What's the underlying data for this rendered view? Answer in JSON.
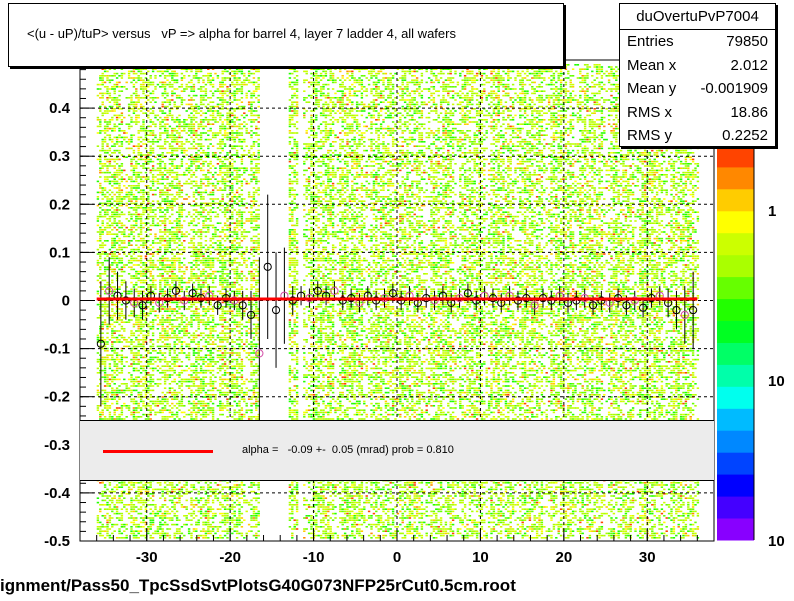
{
  "chart_data": {
    "type": "scatter",
    "title": "<(u - uP)/tuP> versus   vP => alpha for barrel 4, layer 7 ladder 4, all wafers",
    "xlim": [
      -38,
      38
    ],
    "ylim": [
      -0.5,
      0.5
    ],
    "x_ticks": [
      "-30",
      "-20",
      "-10",
      "0",
      "10",
      "20",
      "30"
    ],
    "y_ticks": [
      "-0.5",
      "-0.4",
      "-0.3",
      "-0.2",
      "-0.1",
      "0",
      "0.1",
      "0.2",
      "0.3",
      "0.4"
    ],
    "grid": true,
    "palette_labels": [
      "1",
      "10",
      "10"
    ],
    "fit": {
      "x_range": [
        -36,
        36
      ],
      "y": 0.003,
      "color": "#ff0000",
      "legend_text": "alpha =   -0.09 +-  0.05 (mrad) prob = 0.810"
    },
    "profile_points": [
      {
        "x": -35.5,
        "y": -0.09,
        "err": 0.13
      },
      {
        "x": -34.5,
        "y": 0.02,
        "err": 0.07
      },
      {
        "x": -33.5,
        "y": 0.01,
        "err": 0.05
      },
      {
        "x": -32.5,
        "y": 0.0,
        "err": 0.04
      },
      {
        "x": -31.5,
        "y": -0.005,
        "err": 0.03
      },
      {
        "x": -30.5,
        "y": -0.01,
        "err": 0.03
      },
      {
        "x": -29.5,
        "y": 0.01,
        "err": 0.02
      },
      {
        "x": -28.5,
        "y": -0.005,
        "err": 0.02
      },
      {
        "x": -27.5,
        "y": 0.005,
        "err": 0.02
      },
      {
        "x": -26.5,
        "y": 0.02,
        "err": 0.02
      },
      {
        "x": -25.5,
        "y": 0.0,
        "err": 0.02
      },
      {
        "x": -24.5,
        "y": 0.015,
        "err": 0.02
      },
      {
        "x": -23.5,
        "y": 0.005,
        "err": 0.02
      },
      {
        "x": -22.5,
        "y": 0.01,
        "err": 0.02
      },
      {
        "x": -21.5,
        "y": -0.01,
        "err": 0.02
      },
      {
        "x": -20.5,
        "y": 0.005,
        "err": 0.02
      },
      {
        "x": -19.5,
        "y": 0.0,
        "err": 0.02
      },
      {
        "x": -18.5,
        "y": -0.01,
        "err": 0.03
      },
      {
        "x": -17.5,
        "y": -0.03,
        "err": 0.05
      },
      {
        "x": -16.5,
        "y": -0.11,
        "err": 0.2
      },
      {
        "x": -15.5,
        "y": 0.07,
        "err": 0.15
      },
      {
        "x": -14.5,
        "y": -0.02,
        "err": 0.12
      },
      {
        "x": -13.5,
        "y": 0.01,
        "err": 0.1
      },
      {
        "x": -12.5,
        "y": 0.0,
        "err": 0.03
      },
      {
        "x": -11.5,
        "y": 0.01,
        "err": 0.02
      },
      {
        "x": -10.5,
        "y": 0.005,
        "err": 0.02
      },
      {
        "x": -9.5,
        "y": 0.02,
        "err": 0.02
      },
      {
        "x": -8.5,
        "y": 0.01,
        "err": 0.02
      },
      {
        "x": -7.5,
        "y": 0.02,
        "err": 0.02
      },
      {
        "x": -6.5,
        "y": 0.0,
        "err": 0.02
      },
      {
        "x": -5.5,
        "y": 0.005,
        "err": 0.02
      },
      {
        "x": -4.5,
        "y": -0.005,
        "err": 0.02
      },
      {
        "x": -3.5,
        "y": 0.01,
        "err": 0.02
      },
      {
        "x": -2.5,
        "y": 0.0,
        "err": 0.02
      },
      {
        "x": -1.5,
        "y": 0.005,
        "err": 0.02
      },
      {
        "x": -0.5,
        "y": 0.015,
        "err": 0.02
      },
      {
        "x": 0.5,
        "y": 0.0,
        "err": 0.02
      },
      {
        "x": 1.5,
        "y": 0.01,
        "err": 0.02
      },
      {
        "x": 2.5,
        "y": -0.005,
        "err": 0.02
      },
      {
        "x": 3.5,
        "y": 0.005,
        "err": 0.02
      },
      {
        "x": 4.5,
        "y": 0.0,
        "err": 0.02
      },
      {
        "x": 5.5,
        "y": 0.01,
        "err": 0.02
      },
      {
        "x": 6.5,
        "y": -0.005,
        "err": 0.02
      },
      {
        "x": 7.5,
        "y": 0.005,
        "err": 0.02
      },
      {
        "x": 8.5,
        "y": 0.015,
        "err": 0.02
      },
      {
        "x": 9.5,
        "y": 0.0,
        "err": 0.02
      },
      {
        "x": 10.5,
        "y": 0.01,
        "err": 0.02
      },
      {
        "x": 11.5,
        "y": 0.005,
        "err": 0.02
      },
      {
        "x": 12.5,
        "y": -0.005,
        "err": 0.02
      },
      {
        "x": 13.5,
        "y": 0.01,
        "err": 0.02
      },
      {
        "x": 14.5,
        "y": 0.0,
        "err": 0.02
      },
      {
        "x": 15.5,
        "y": 0.005,
        "err": 0.02
      },
      {
        "x": 16.5,
        "y": -0.01,
        "err": 0.02
      },
      {
        "x": 17.5,
        "y": 0.005,
        "err": 0.02
      },
      {
        "x": 18.5,
        "y": 0.0,
        "err": 0.02
      },
      {
        "x": 19.5,
        "y": 0.01,
        "err": 0.02
      },
      {
        "x": 20.5,
        "y": -0.005,
        "err": 0.02
      },
      {
        "x": 21.5,
        "y": 0.0,
        "err": 0.02
      },
      {
        "x": 22.5,
        "y": 0.005,
        "err": 0.02
      },
      {
        "x": 23.5,
        "y": -0.01,
        "err": 0.02
      },
      {
        "x": 24.5,
        "y": 0.0,
        "err": 0.02
      },
      {
        "x": 25.5,
        "y": -0.005,
        "err": 0.02
      },
      {
        "x": 26.5,
        "y": 0.005,
        "err": 0.02
      },
      {
        "x": 27.5,
        "y": -0.01,
        "err": 0.02
      },
      {
        "x": 28.5,
        "y": 0.0,
        "err": 0.02
      },
      {
        "x": 29.5,
        "y": -0.015,
        "err": 0.02
      },
      {
        "x": 30.5,
        "y": 0.005,
        "err": 0.02
      },
      {
        "x": 31.5,
        "y": 0.01,
        "err": 0.02
      },
      {
        "x": 32.5,
        "y": -0.005,
        "err": 0.03
      },
      {
        "x": 33.5,
        "y": -0.02,
        "err": 0.04
      },
      {
        "x": 34.5,
        "y": -0.03,
        "err": 0.06
      },
      {
        "x": 35.5,
        "y": -0.02,
        "err": 0.08
      }
    ]
  },
  "stats": {
    "name": "duOvertuPvP7004",
    "rows": [
      {
        "label": "Entries",
        "value": "79850"
      },
      {
        "label": "Mean x",
        "value": "2.012"
      },
      {
        "label": "Mean y",
        "value": "-0.001909"
      },
      {
        "label": "RMS x",
        "value": "18.86"
      },
      {
        "label": "RMS y",
        "value": "0.2252"
      }
    ]
  },
  "file_label": "ignment/Pass50_TpcSsdSvtPlotsG40G073NFP25rCut0.5cm.root",
  "colors": {
    "frame_bg": "#ffffff",
    "fit_line": "#ff0000",
    "legend_bg": "#ececec",
    "palette": [
      "#8800ff",
      "#4400ff",
      "#0000ff",
      "#0044ff",
      "#0088ff",
      "#00bbff",
      "#00ffee",
      "#00ffaa",
      "#00ff66",
      "#00ff22",
      "#22ff00",
      "#66ff00",
      "#aaff00",
      "#ccff00",
      "#ffff00",
      "#ffcc00",
      "#ff8800",
      "#ff4400"
    ]
  }
}
